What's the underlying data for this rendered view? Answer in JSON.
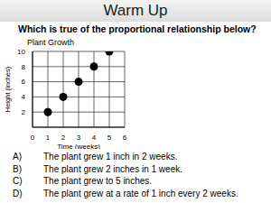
{
  "heading": "Warm Up",
  "question": "Which is true of the proportional relationship below?",
  "chart_data": {
    "type": "scatter",
    "title": "Plant Growth",
    "xlabel": "Time (weeks)",
    "ylabel": "Height (inches)",
    "x": [
      1,
      2,
      3,
      4,
      5
    ],
    "values": [
      2,
      4,
      6,
      8,
      10
    ],
    "xlim": [
      0,
      6
    ],
    "xticks": [
      0,
      1,
      2,
      3,
      4,
      5,
      6
    ],
    "ylim": [
      0,
      10
    ],
    "yticks": [
      2,
      4,
      6,
      8,
      10
    ],
    "grid": true,
    "color": "#000000",
    "marker": "circle"
  },
  "choices": [
    {
      "letter": "A)",
      "text": "The plant grew 1 inch in 2 weeks."
    },
    {
      "letter": "B)",
      "text": "The plant grew 2 inches in 1 week."
    },
    {
      "letter": "C)",
      "text": "The plant grew to 5 inches."
    },
    {
      "letter": "D)",
      "text": "The plant grew at a rate of 1 inch every 2 weeks."
    }
  ]
}
